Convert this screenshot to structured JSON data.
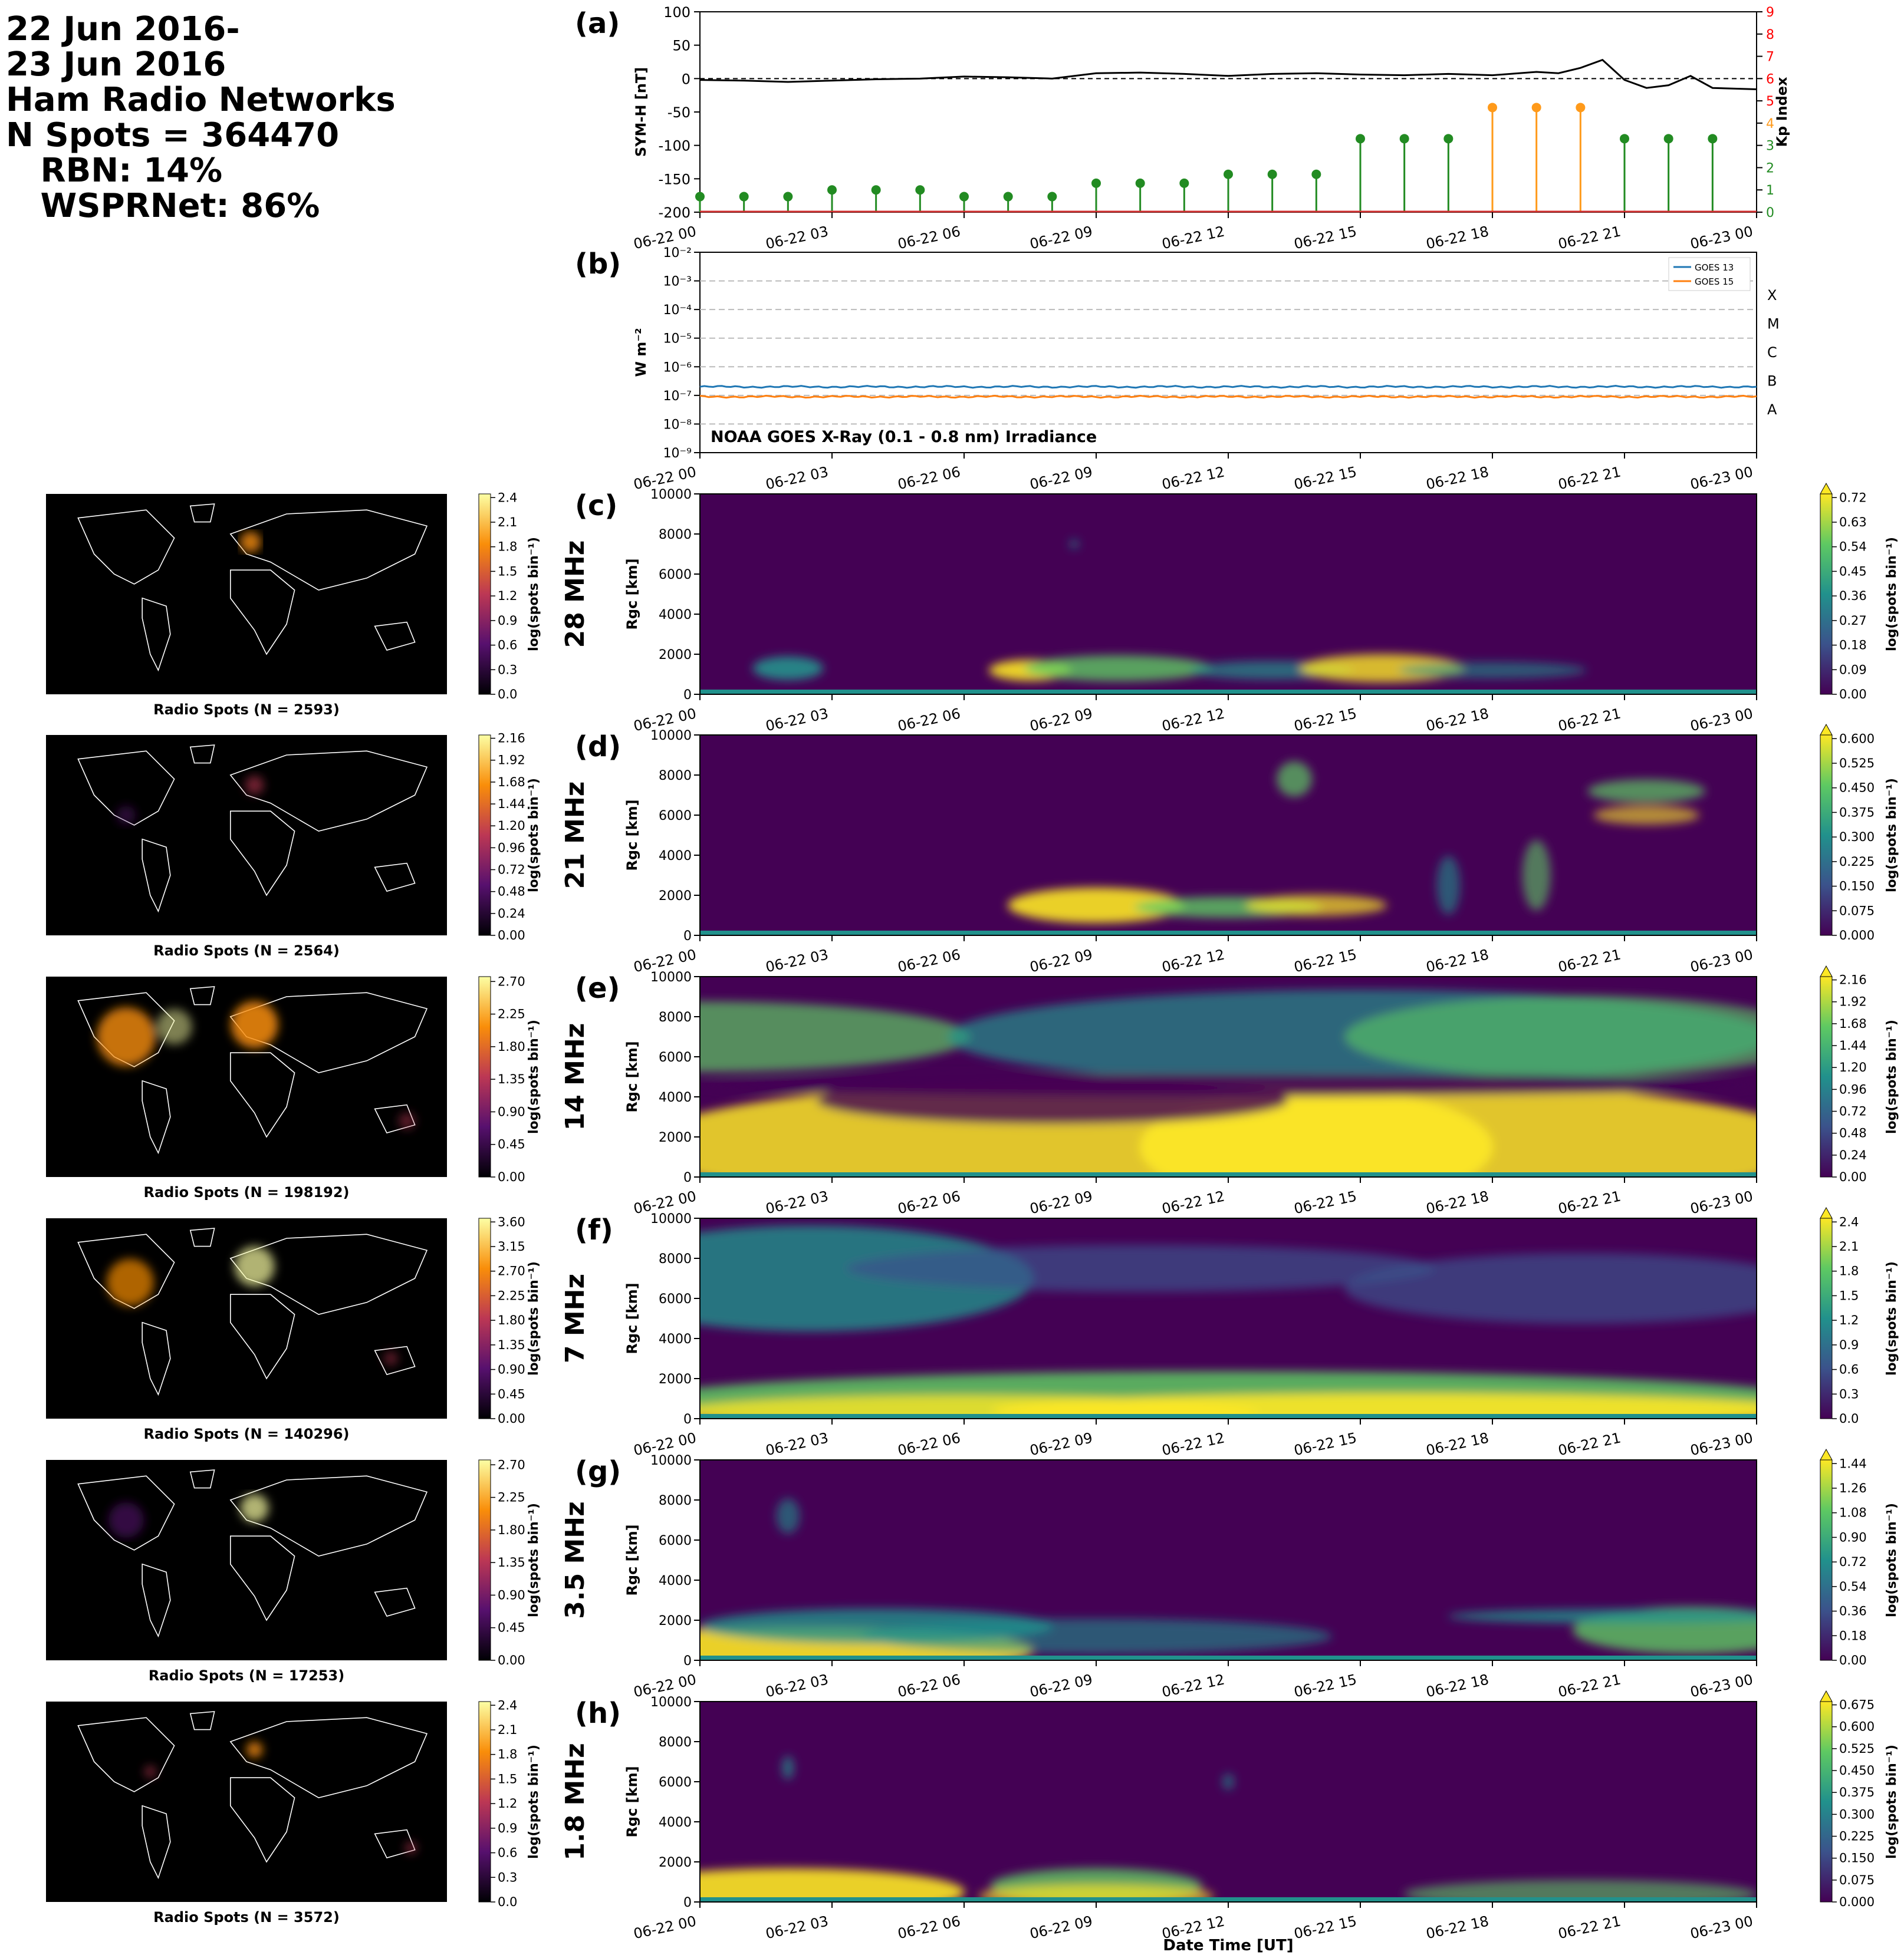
{
  "header": {
    "line1": "22 Jun 2016-",
    "line2": "23 Jun 2016",
    "line3": "Ham Radio Networks",
    "line4": "N Spots = 364470",
    "line5": "RBN: 14%",
    "line6": "WSPRNet: 86%"
  },
  "time_ticks": [
    "06-22 00",
    "06-22 03",
    "06-22 06",
    "06-22 09",
    "06-22 12",
    "06-22 15",
    "06-22 18",
    "06-22 21",
    "06-23 00"
  ],
  "xlabel": "Date Time [UT]",
  "colors": {
    "symh": "#000000",
    "kp_green": "#228b22",
    "kp_orange": "#ff9a1a",
    "kp_axis": "#ff0000",
    "goes13": "#1f77b4",
    "goes15": "#ff7f0e"
  },
  "chart_data": [
    {
      "panel": "(a)",
      "type": "line",
      "ylabel": "SYM-H [nT]",
      "ylim": [
        -200,
        100
      ],
      "yticks": [
        100,
        50,
        0,
        -50,
        -100,
        -150,
        -200
      ],
      "x": [
        0,
        1,
        2,
        3,
        4,
        5,
        6,
        7,
        8,
        9,
        10,
        11,
        12,
        13,
        14,
        15,
        16,
        17,
        18,
        19,
        19.5,
        20,
        20.5,
        21,
        21.5,
        22,
        22.5,
        23,
        24
      ],
      "symh": [
        -2,
        -3,
        -5,
        -3,
        -1,
        0,
        3,
        2,
        0,
        8,
        9,
        7,
        4,
        7,
        8,
        6,
        5,
        7,
        5,
        10,
        8,
        16,
        28,
        -2,
        -14,
        -10,
        4,
        -14,
        -16
      ],
      "kp_ylabel": "Kp Index",
      "kp_ylim": [
        0,
        9
      ],
      "kp_ticks": [
        0,
        1,
        2,
        3,
        4,
        5,
        6,
        7,
        8,
        9
      ],
      "kp_x": [
        0,
        1,
        2,
        3,
        4,
        5,
        6,
        7,
        8,
        9,
        10,
        11,
        12,
        13,
        14,
        15,
        16,
        17,
        18,
        19,
        20,
        21,
        22,
        23
      ],
      "kp": [
        0.7,
        0.7,
        0.7,
        1.0,
        1.0,
        1.0,
        0.7,
        0.7,
        0.7,
        1.3,
        1.3,
        1.3,
        1.7,
        1.7,
        1.7,
        3.3,
        3.3,
        3.3,
        4.7,
        4.7,
        4.7,
        3.3,
        3.3,
        3.3
      ]
    },
    {
      "panel": "(b)",
      "type": "line",
      "ylabel": "W m⁻²",
      "yscale": "log",
      "ylim": [
        1e-09,
        0.01
      ],
      "ytick_labels": [
        "10⁻²",
        "10⁻³",
        "10⁻⁴",
        "10⁻⁵",
        "10⁻⁶",
        "10⁻⁷",
        "10⁻⁸",
        "10⁻⁹"
      ],
      "classes": [
        "X",
        "M",
        "C",
        "B",
        "A"
      ],
      "annotation": "NOAA GOES X-Ray (0.1 - 0.8 nm) Irradiance",
      "series": [
        {
          "name": "GOES 13",
          "approx_value": 2e-07
        },
        {
          "name": "GOES 15",
          "approx_value": 9e-08
        }
      ]
    },
    {
      "panel": "(c)",
      "band": "28 MHz",
      "type": "heatmap",
      "ylabel": "Rgc [km]",
      "ylim": [
        0,
        10000
      ],
      "cbar_label": "log(spots bin⁻¹)",
      "cbar_ticks": [
        "0.00",
        "0.09",
        "0.18",
        "0.27",
        "0.36",
        "0.45",
        "0.54",
        "0.63",
        "0.72"
      ],
      "map_title": "Radio Spots (N = 2593)",
      "map_cbar_ticks": [
        "0.0",
        "0.3",
        "0.6",
        "0.9",
        "1.2",
        "1.5",
        "1.8",
        "2.1",
        "2.4"
      ]
    },
    {
      "panel": "(d)",
      "band": "21 MHz",
      "type": "heatmap",
      "ylabel": "Rgc [km]",
      "ylim": [
        0,
        10000
      ],
      "cbar_label": "log(spots bin⁻¹)",
      "cbar_ticks": [
        "0.000",
        "0.075",
        "0.150",
        "0.225",
        "0.300",
        "0.375",
        "0.450",
        "0.525",
        "0.600"
      ],
      "map_title": "Radio Spots (N = 2564)",
      "map_cbar_ticks": [
        "0.00",
        "0.24",
        "0.48",
        "0.72",
        "0.96",
        "1.20",
        "1.44",
        "1.68",
        "1.92",
        "2.16"
      ]
    },
    {
      "panel": "(e)",
      "band": "14 MHz",
      "type": "heatmap",
      "ylabel": "Rgc [km]",
      "ylim": [
        0,
        10000
      ],
      "cbar_label": "log(spots bin⁻¹)",
      "cbar_ticks": [
        "0.00",
        "0.24",
        "0.48",
        "0.72",
        "0.96",
        "1.20",
        "1.44",
        "1.68",
        "1.92",
        "2.16"
      ],
      "map_title": "Radio Spots (N = 198192)",
      "map_cbar_ticks": [
        "0.00",
        "0.45",
        "0.90",
        "1.35",
        "1.80",
        "2.25",
        "2.70"
      ]
    },
    {
      "panel": "(f)",
      "band": "7 MHz",
      "type": "heatmap",
      "ylabel": "Rgc [km]",
      "ylim": [
        0,
        10000
      ],
      "cbar_label": "log(spots bin⁻¹)",
      "cbar_ticks": [
        "0.0",
        "0.3",
        "0.6",
        "0.9",
        "1.2",
        "1.5",
        "1.8",
        "2.1",
        "2.4"
      ],
      "map_title": "Radio Spots (N = 140296)",
      "map_cbar_ticks": [
        "0.00",
        "0.45",
        "0.90",
        "1.35",
        "1.80",
        "2.25",
        "2.70",
        "3.15",
        "3.60"
      ]
    },
    {
      "panel": "(g)",
      "band": "3.5 MHz",
      "type": "heatmap",
      "ylabel": "Rgc [km]",
      "ylim": [
        0,
        10000
      ],
      "cbar_label": "log(spots bin⁻¹)",
      "cbar_ticks": [
        "0.00",
        "0.18",
        "0.36",
        "0.54",
        "0.72",
        "0.90",
        "1.08",
        "1.26",
        "1.44"
      ],
      "map_title": "Radio Spots (N = 17253)",
      "map_cbar_ticks": [
        "0.00",
        "0.45",
        "0.90",
        "1.35",
        "1.80",
        "2.25",
        "2.70"
      ]
    },
    {
      "panel": "(h)",
      "band": "1.8 MHz",
      "type": "heatmap",
      "ylabel": "Rgc [km]",
      "ylim": [
        0,
        10000
      ],
      "cbar_label": "log(spots bin⁻¹)",
      "cbar_ticks": [
        "0.000",
        "0.075",
        "0.150",
        "0.225",
        "0.300",
        "0.375",
        "0.450",
        "0.525",
        "0.600",
        "0.675"
      ],
      "map_title": "Radio Spots (N = 3572)",
      "map_cbar_ticks": [
        "0.0",
        "0.3",
        "0.6",
        "0.9",
        "1.2",
        "1.5",
        "1.8",
        "2.1",
        "2.4"
      ]
    }
  ]
}
